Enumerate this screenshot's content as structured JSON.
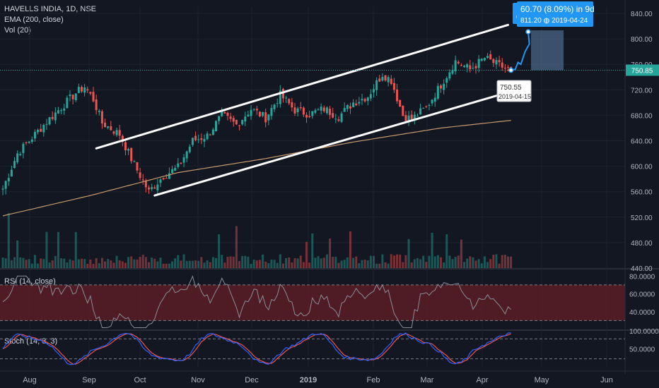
{
  "legend": {
    "symbol": "HAVELLS INDIA, 1D, NSE",
    "ema": "EMA (200, close)",
    "vol": "Vol (20)"
  },
  "rsi_label": "RSI (14, close)",
  "stoch_label": "Stoch (14, 3, 3)",
  "colors": {
    "up": "#26a69a",
    "down": "#ef5350",
    "ema": "#c69a6d",
    "rsi": "#8a8d96",
    "stoch_k": "#2962ff",
    "stoch_d": "#ef5350",
    "projection": "#2196f3",
    "last_price": "#26a69a",
    "rsi_band": "#5b1d26"
  },
  "chart_data": {
    "type": "candlestick",
    "x_ticks": [
      "Aug",
      "Sep",
      "Oct",
      "Nov",
      "Dec",
      "2019",
      "Feb",
      "Mar",
      "Apr",
      "May",
      "Jun"
    ],
    "price_axis": {
      "ticks": [
        "840.00",
        "800.00",
        "760.00",
        "720.00",
        "680.00",
        "640.00",
        "600.00",
        "560.00",
        "520.00",
        "480.00",
        "440.00"
      ],
      "ylim": [
        440,
        850
      ]
    },
    "last_price": "750.85",
    "price_anchor": [
      {
        "day": 0,
        "close": 565
      },
      {
        "day": 5,
        "close": 620
      },
      {
        "day": 15,
        "close": 670
      },
      {
        "day": 25,
        "close": 715
      },
      {
        "day": 28,
        "close": 725
      },
      {
        "day": 31,
        "close": 705
      },
      {
        "day": 34,
        "close": 668
      },
      {
        "day": 40,
        "close": 650
      },
      {
        "day": 45,
        "close": 602
      },
      {
        "day": 50,
        "close": 560
      },
      {
        "day": 55,
        "close": 585
      },
      {
        "day": 60,
        "close": 598
      },
      {
        "day": 65,
        "close": 640
      },
      {
        "day": 70,
        "close": 648
      },
      {
        "day": 75,
        "close": 680
      },
      {
        "day": 80,
        "close": 665
      },
      {
        "day": 85,
        "close": 690
      },
      {
        "day": 90,
        "close": 676
      },
      {
        "day": 95,
        "close": 712
      },
      {
        "day": 100,
        "close": 688
      },
      {
        "day": 105,
        "close": 682
      },
      {
        "day": 110,
        "close": 690
      },
      {
        "day": 115,
        "close": 678
      },
      {
        "day": 120,
        "close": 700
      },
      {
        "day": 125,
        "close": 710
      },
      {
        "day": 130,
        "close": 745
      },
      {
        "day": 133,
        "close": 735
      },
      {
        "day": 137,
        "close": 680
      },
      {
        "day": 140,
        "close": 674
      },
      {
        "day": 145,
        "close": 692
      },
      {
        "day": 150,
        "close": 728
      },
      {
        "day": 155,
        "close": 765
      },
      {
        "day": 160,
        "close": 752
      },
      {
        "day": 165,
        "close": 770
      },
      {
        "day": 170,
        "close": 758
      },
      {
        "day": 174,
        "close": 750
      }
    ],
    "ema_anchor": [
      {
        "day": 0,
        "value": 522
      },
      {
        "day": 30,
        "value": 554
      },
      {
        "day": 60,
        "value": 590
      },
      {
        "day": 90,
        "value": 612
      },
      {
        "day": 120,
        "value": 638
      },
      {
        "day": 150,
        "value": 660
      },
      {
        "day": 174,
        "value": 672
      }
    ],
    "channel_lines": [
      {
        "from": {
          "day": 32,
          "price": 628
        },
        "to": {
          "day": 173,
          "price": 822
        }
      },
      {
        "from": {
          "day": 52,
          "price": 554
        },
        "to": {
          "day": 173,
          "price": 716
        }
      }
    ],
    "annotations": {
      "low_point": {
        "price": "750.55",
        "date": "2019-04-15"
      },
      "projection": {
        "change": "60.70 (8.09%) in 9d",
        "target_price": "811.20",
        "target_date": "2019-04-24",
        "marker": "6"
      }
    },
    "rsi": {
      "ticks": [
        "80.0000",
        "60.0000",
        "40.0000"
      ],
      "band": [
        30,
        70
      ],
      "last": 50
    },
    "stoch": {
      "ticks": [
        "100.0000",
        "50.0000"
      ],
      "levels": [
        20,
        80
      ]
    }
  }
}
